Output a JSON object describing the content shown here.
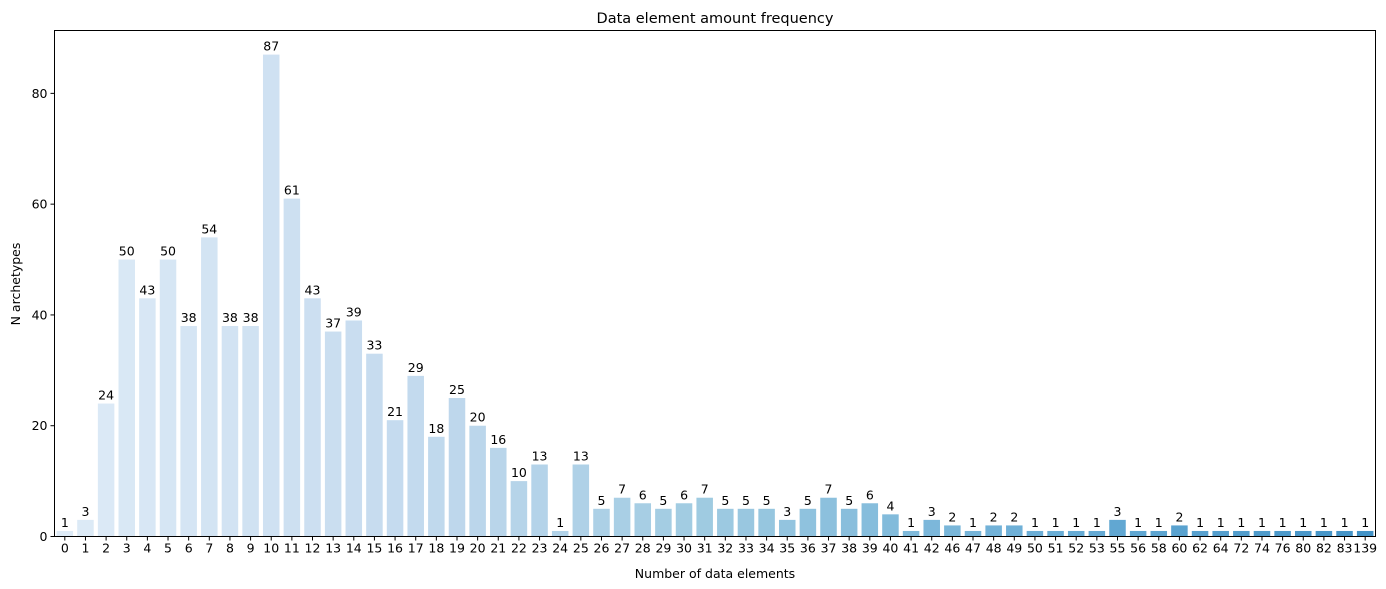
{
  "chart_data": {
    "type": "bar",
    "title": "Data element amount frequency",
    "xlabel": "Number of data elements",
    "ylabel": "N archetypes",
    "ylim": [
      0,
      91.35
    ],
    "yticks": [
      0,
      20,
      40,
      60,
      80
    ],
    "grid": false,
    "color_ramp": [
      "#deebf7",
      "#c6dbef",
      "#9ecae1",
      "#6baed6",
      "#4292c6"
    ],
    "categories": [
      "0",
      "1",
      "2",
      "3",
      "4",
      "5",
      "6",
      "7",
      "8",
      "9",
      "10",
      "11",
      "12",
      "13",
      "14",
      "15",
      "16",
      "17",
      "18",
      "19",
      "20",
      "21",
      "22",
      "23",
      "24",
      "25",
      "26",
      "27",
      "28",
      "29",
      "30",
      "31",
      "32",
      "33",
      "34",
      "35",
      "36",
      "37",
      "38",
      "39",
      "40",
      "41",
      "42",
      "46",
      "47",
      "48",
      "49",
      "50",
      "51",
      "52",
      "53",
      "55",
      "56",
      "58",
      "60",
      "62",
      "64",
      "72",
      "74",
      "76",
      "80",
      "82",
      "83",
      "139"
    ],
    "values": [
      1,
      3,
      24,
      50,
      43,
      50,
      38,
      54,
      38,
      38,
      87,
      61,
      43,
      37,
      39,
      33,
      21,
      29,
      18,
      25,
      20,
      16,
      10,
      13,
      1,
      13,
      5,
      7,
      6,
      5,
      6,
      7,
      5,
      5,
      5,
      3,
      5,
      7,
      5,
      6,
      4,
      1,
      3,
      2,
      1,
      2,
      2,
      1,
      1,
      1,
      1,
      3,
      1,
      1,
      2,
      1,
      1,
      1,
      1,
      1,
      1,
      1,
      1,
      1
    ]
  }
}
